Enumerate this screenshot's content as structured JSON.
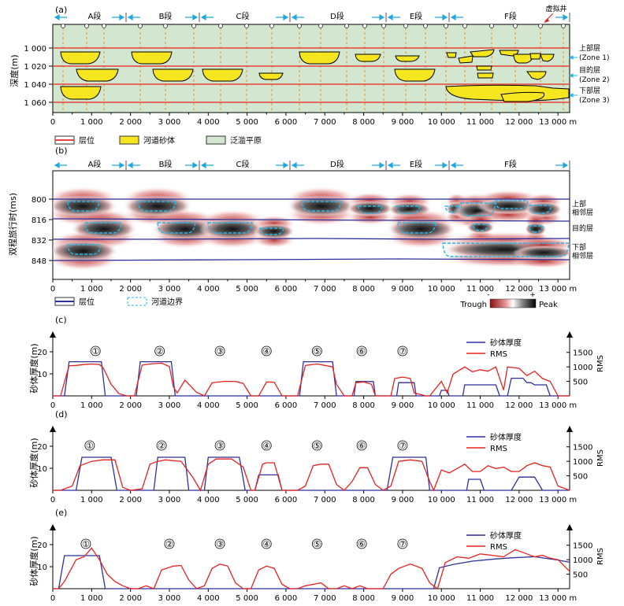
{
  "panels": {
    "a": {
      "label": "(a)",
      "ylabel": "深度(m)",
      "segments": [
        "A段",
        "B段",
        "C段",
        "D段",
        "E段",
        "F段"
      ],
      "virtual_well_label": "虚拟井",
      "depth_ticks": [
        1000,
        1020,
        1040,
        1060
      ],
      "depth_tick_labels": [
        "1 000",
        "1 020",
        "1 040",
        "1 060"
      ],
      "zone_labels": [
        [
          "上部层",
          "(Zone 1)"
        ],
        [
          "目的层",
          "(Zone 2)"
        ],
        [
          "下部层",
          "(Zone 3)"
        ]
      ],
      "legend": [
        "层位",
        "河道砂体",
        "泛滥平原"
      ]
    },
    "b": {
      "label": "(b)",
      "ylabel": "双程旅行时(ms)",
      "segments": [
        "A段",
        "B段",
        "C段",
        "D段",
        "E段",
        "F段"
      ],
      "time_ticks": [
        800,
        816,
        832,
        848
      ],
      "zone_labels": [
        [
          "上部",
          "相邻层"
        ],
        [
          "目的层"
        ],
        [
          "下部",
          "相邻层"
        ]
      ],
      "legend": [
        "层位",
        "河道边界"
      ],
      "colorbar": {
        "trough": "Trough",
        "peak": "Peak",
        "minus": "-",
        "plus": "+"
      }
    },
    "c": {
      "label": "(c)"
    },
    "d": {
      "label": "(d)"
    },
    "e": {
      "label": "(e)"
    }
  },
  "x_axis": {
    "ticks": [
      0,
      1000,
      2000,
      3000,
      4000,
      5000,
      6000,
      7000,
      8000,
      9000,
      10000,
      11000,
      12000,
      13000
    ],
    "tick_labels": [
      "0",
      "1 000",
      "2 000",
      "3 000",
      "4 000",
      "5 000",
      "6 000",
      "7 000",
      "8 000",
      "9 000",
      "10 000",
      "11 000",
      "12 000",
      "13 000 m"
    ]
  },
  "colors": {
    "sand": "#f5e620",
    "floodplain": "#d3e6cf",
    "horizon_red": "#e8423a",
    "horizon_blue": "#2b2f9a",
    "thickness": "#2f2f9e",
    "rms": "#e8211f",
    "arrow": "#21a8dc",
    "channel_edge": "#29b6e8"
  },
  "chart_data": [
    {
      "type": "line",
      "panel": "c",
      "ylabel": "砂体厚度(m)",
      "y2label": "RMS",
      "ylim": [
        0,
        25
      ],
      "yticks": [
        10,
        20
      ],
      "y2lim": [
        0,
        1900
      ],
      "y2ticks": [
        500,
        1000,
        1500
      ],
      "xlim": [
        0,
        13300
      ],
      "legend": [
        "砂体厚度",
        "RMS"
      ],
      "markers": [
        {
          "label": "①",
          "x": 1100
        },
        {
          "label": "②",
          "x": 2750
        },
        {
          "label": "③",
          "x": 4300
        },
        {
          "label": "④",
          "x": 5500
        },
        {
          "label": "⑤",
          "x": 6800
        },
        {
          "label": "⑥",
          "x": 7950
        },
        {
          "label": "⑦",
          "x": 9000
        }
      ],
      "series": [
        {
          "name": "砂体厚度",
          "axis": "left",
          "x": [
            0,
            300,
            420,
            1250,
            1350,
            2150,
            2250,
            3050,
            3150,
            3900,
            6350,
            6450,
            7200,
            7300,
            7750,
            7800,
            8250,
            8300,
            8850,
            8900,
            9300,
            9350,
            9950,
            10000,
            10150,
            10200,
            10550,
            10600,
            11400,
            11500,
            11700,
            11800,
            12100,
            12200,
            12300,
            12400,
            12700,
            12800,
            13300
          ],
          "values": [
            0,
            0,
            15.5,
            15.5,
            0,
            0,
            15.5,
            15.5,
            0,
            0,
            0,
            15.5,
            15.5,
            0,
            0,
            6.5,
            6.5,
            0,
            0,
            6,
            6,
            0,
            0,
            2.5,
            2.5,
            0,
            0,
            5,
            5,
            0,
            0,
            8,
            8,
            6,
            6,
            5,
            5,
            0,
            0
          ]
        },
        {
          "name": "RMS",
          "axis": "right",
          "x": [
            0,
            200,
            420,
            600,
            800,
            1000,
            1200,
            1300,
            1500,
            1700,
            1900,
            2100,
            2300,
            2500,
            2800,
            3000,
            3100,
            3200,
            3400,
            3700,
            3900,
            4100,
            4400,
            4700,
            4900,
            5100,
            5300,
            5500,
            5700,
            5900,
            6100,
            6300,
            6500,
            6800,
            7000,
            7200,
            7300,
            7500,
            7700,
            7800,
            8000,
            8200,
            8300,
            8500,
            8700,
            8800,
            9000,
            9200,
            9300,
            9600,
            9700,
            10000,
            10150,
            10300,
            10600,
            10800,
            11000,
            11200,
            11400,
            11600,
            11700,
            12000,
            12200,
            12400,
            12600,
            12800,
            13000,
            13300
          ],
          "values": [
            0,
            0,
            1040,
            1050,
            1080,
            1100,
            1080,
            960,
            400,
            80,
            0,
            0,
            1060,
            1100,
            1130,
            1010,
            320,
            100,
            540,
            120,
            0,
            450,
            500,
            500,
            430,
            0,
            0,
            480,
            470,
            0,
            0,
            0,
            1050,
            1100,
            1050,
            1000,
            400,
            0,
            0,
            450,
            480,
            400,
            0,
            0,
            0,
            600,
            650,
            600,
            100,
            0,
            0,
            500,
            100,
            750,
            1000,
            830,
            900,
            850,
            1000,
            200,
            1000,
            950,
            700,
            850,
            600,
            500,
            0,
            0
          ]
        }
      ]
    },
    {
      "type": "line",
      "panel": "d",
      "ylabel": "砂体厚度(m)",
      "y2label": "RMS",
      "ylim": [
        0,
        25
      ],
      "yticks": [
        10,
        20
      ],
      "y2lim": [
        0,
        1900
      ],
      "y2ticks": [
        500,
        1000,
        1500
      ],
      "xlim": [
        0,
        13300
      ],
      "legend": [
        "砂体厚度",
        "RMS"
      ],
      "markers": [
        {
          "label": "①",
          "x": 950
        },
        {
          "label": "②",
          "x": 2800
        },
        {
          "label": "③",
          "x": 4300
        },
        {
          "label": "④",
          "x": 5500
        },
        {
          "label": "⑤",
          "x": 6800
        },
        {
          "label": "⑥",
          "x": 7950
        },
        {
          "label": "⑦",
          "x": 9000
        }
      ],
      "series": [
        {
          "name": "砂体厚度",
          "axis": "left",
          "x": [
            0,
            600,
            750,
            1500,
            1650,
            2600,
            2700,
            3400,
            3500,
            3900,
            4000,
            4800,
            4950,
            5200,
            5300,
            5800,
            5900,
            8600,
            8750,
            9600,
            9700,
            10650,
            10700,
            11000,
            11100,
            11800,
            12000,
            12400,
            12600,
            13300
          ],
          "values": [
            0,
            0,
            15,
            15,
            0,
            0,
            15,
            15,
            0,
            0,
            15,
            15,
            0,
            0,
            7,
            7,
            0,
            0,
            15,
            15,
            0,
            0,
            5,
            5,
            0,
            0,
            6,
            6,
            0,
            0
          ]
        },
        {
          "name": "RMS",
          "axis": "right",
          "x": [
            0,
            200,
            500,
            700,
            1000,
            1300,
            1600,
            1800,
            2000,
            2300,
            2500,
            2700,
            2900,
            3300,
            3600,
            3800,
            4000,
            4200,
            4600,
            4900,
            5100,
            5200,
            5400,
            5500,
            5700,
            5900,
            6100,
            6300,
            6500,
            6700,
            6900,
            7100,
            7300,
            7500,
            7700,
            7900,
            8100,
            8300,
            8500,
            8700,
            8900,
            9200,
            9500,
            9700,
            9800,
            10000,
            10200,
            10400,
            10600,
            10800,
            11000,
            11200,
            11400,
            11600,
            11800,
            12000,
            12200,
            12400,
            12600,
            12800,
            13000,
            13300
          ],
          "values": [
            0,
            0,
            150,
            850,
            1000,
            1050,
            1050,
            100,
            0,
            50,
            900,
            1000,
            1050,
            1000,
            450,
            0,
            900,
            1080,
            1080,
            800,
            0,
            0,
            900,
            950,
            950,
            0,
            0,
            0,
            150,
            850,
            900,
            900,
            200,
            0,
            300,
            780,
            780,
            200,
            0,
            150,
            1000,
            1050,
            1000,
            300,
            0,
            700,
            600,
            750,
            900,
            650,
            650,
            850,
            750,
            800,
            650,
            650,
            850,
            950,
            850,
            800,
            150,
            0
          ]
        }
      ]
    },
    {
      "type": "line",
      "panel": "e",
      "ylabel": "砂体厚度(m)",
      "y2label": "RMS",
      "ylim": [
        0,
        25
      ],
      "yticks": [
        10,
        20
      ],
      "y2lim": [
        0,
        1900
      ],
      "y2ticks": [
        500,
        1000,
        1500
      ],
      "xlim": [
        0,
        13300
      ],
      "legend": [
        "砂体厚度",
        "RMS"
      ],
      "markers": [
        {
          "label": "①",
          "x": 850
        },
        {
          "label": "②",
          "x": 3000
        },
        {
          "label": "③",
          "x": 4300
        },
        {
          "label": "④",
          "x": 5500
        },
        {
          "label": "⑤",
          "x": 6800
        },
        {
          "label": "⑥",
          "x": 7950
        },
        {
          "label": "⑦",
          "x": 9000
        }
      ],
      "series": [
        {
          "name": "砂体厚度",
          "axis": "left",
          "x": [
            0,
            150,
            300,
            1200,
            1350,
            9800,
            9950,
            10300,
            10800,
            11400,
            11800,
            12400,
            13000,
            13300
          ],
          "values": [
            0,
            0,
            15,
            15,
            0,
            0,
            9.5,
            11,
            12.5,
            13.5,
            14,
            14.5,
            13,
            12
          ]
        },
        {
          "name": "RMS",
          "axis": "right",
          "x": [
            0,
            150,
            300,
            600,
            800,
            1000,
            1200,
            1400,
            1600,
            1800,
            2000,
            2200,
            2400,
            2600,
            2800,
            3100,
            3300,
            3500,
            3700,
            3900,
            4100,
            4300,
            4500,
            4700,
            4900,
            5100,
            5300,
            5500,
            5700,
            5900,
            6100,
            6300,
            6500,
            6700,
            6900,
            7100,
            7300,
            7500,
            7700,
            7900,
            8100,
            8300,
            8500,
            8700,
            8900,
            9200,
            9500,
            9700,
            9900,
            10100,
            10400,
            10700,
            11000,
            11300,
            11600,
            11900,
            12200,
            12400,
            12600,
            12800,
            13000,
            13300
          ],
          "values": [
            0,
            0,
            250,
            1000,
            1100,
            1400,
            1000,
            500,
            250,
            100,
            0,
            0,
            100,
            0,
            650,
            780,
            800,
            300,
            0,
            100,
            700,
            850,
            780,
            200,
            0,
            0,
            650,
            780,
            700,
            150,
            0,
            0,
            100,
            150,
            200,
            0,
            0,
            100,
            0,
            100,
            0,
            0,
            0,
            500,
            700,
            850,
            700,
            200,
            0,
            900,
            1100,
            1050,
            1200,
            1150,
            1100,
            1350,
            1200,
            1100,
            1150,
            1050,
            1000,
            600
          ]
        }
      ]
    }
  ]
}
